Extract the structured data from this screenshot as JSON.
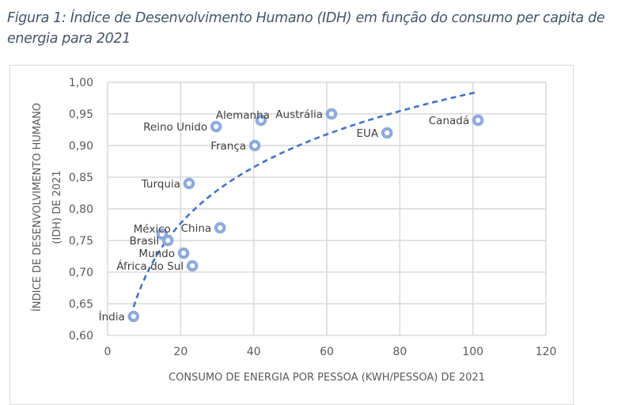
{
  "figure": {
    "caption_line1": "Figura 1: Índice de Desenvolvimento Humano (IDH) em função do consumo per capita de",
    "caption_line2": "energia para 2021"
  },
  "colors": {
    "marker": "#8eaadb",
    "trendline": "#4472c4",
    "grid": "#d9d9d9",
    "caption": "#44546a"
  },
  "chart_data": {
    "type": "scatter",
    "title": "",
    "xlabel": "CONSUMO DE ENERGIA POR PESSOA (KWH/PESSOA) DE 2021",
    "ylabel_line1": "ÍNDICE DE DESENVOLVIMENTO HUMANO",
    "ylabel_line2": "(IDH) DE 2021",
    "xlim": [
      0,
      120
    ],
    "ylim": [
      0.6,
      1.0
    ],
    "x_ticks": [
      0,
      20,
      40,
      60,
      80,
      100,
      120
    ],
    "x_tick_labels": [
      "0",
      "20",
      "40",
      "60",
      "80",
      "100",
      "120"
    ],
    "y_ticks": [
      0.6,
      0.65,
      0.7,
      0.75,
      0.8,
      0.85,
      0.9,
      0.95,
      1.0
    ],
    "y_tick_labels": [
      "0,60",
      "0,65",
      "0,70",
      "0,75",
      "0,80",
      "0,85",
      "0,90",
      "0,95",
      "1,00"
    ],
    "grid": true,
    "legend": "none",
    "points": [
      {
        "label": "Índia",
        "x": 7.1,
        "y": 0.63,
        "label_pos": "left"
      },
      {
        "label": "México",
        "x": 14.9,
        "y": 0.76,
        "label_pos": "left-up"
      },
      {
        "label": "Brasil",
        "x": 16.5,
        "y": 0.75,
        "label_pos": "left"
      },
      {
        "label": "Mundo",
        "x": 20.8,
        "y": 0.73,
        "label_pos": "left"
      },
      {
        "label": "África do Sul",
        "x": 23.2,
        "y": 0.71,
        "label_pos": "left"
      },
      {
        "label": "Turquia",
        "x": 22.3,
        "y": 0.84,
        "label_pos": "left"
      },
      {
        "label": "China",
        "x": 30.8,
        "y": 0.77,
        "label_pos": "left"
      },
      {
        "label": "Reino Unido",
        "x": 29.7,
        "y": 0.93,
        "label_pos": "left"
      },
      {
        "label": "França",
        "x": 40.3,
        "y": 0.9,
        "label_pos": "left"
      },
      {
        "label": "Alemanha",
        "x": 42.0,
        "y": 0.94,
        "label_pos": "left-up"
      },
      {
        "label": "Austrália",
        "x": 61.3,
        "y": 0.95,
        "label_pos": "left"
      },
      {
        "label": "EUA",
        "x": 76.5,
        "y": 0.92,
        "label_pos": "left"
      },
      {
        "label": "Canadá",
        "x": 101.4,
        "y": 0.94,
        "label_pos": "left"
      }
    ],
    "trendline": {
      "type": "logarithmic",
      "style": "dashed",
      "a": 0.1279,
      "b": 0.394,
      "x_range": [
        7.1,
        101.4
      ]
    }
  }
}
